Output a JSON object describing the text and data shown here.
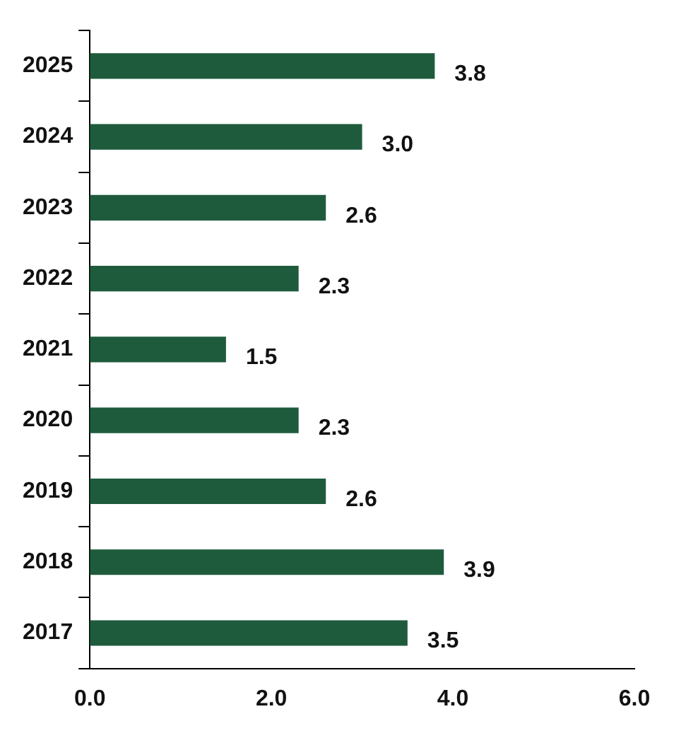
{
  "chart_data": {
    "type": "bar",
    "orientation": "horizontal",
    "categories": [
      "2025",
      "2024",
      "2023",
      "2022",
      "2021",
      "2020",
      "2019",
      "2018",
      "2017"
    ],
    "values": [
      3.8,
      3.0,
      2.6,
      2.3,
      1.5,
      2.3,
      2.6,
      3.9,
      3.5
    ],
    "value_labels": [
      "3.8",
      "3.0",
      "2.6",
      "2.3",
      "1.5",
      "2.3",
      "2.6",
      "3.9",
      "3.5"
    ],
    "color": "#1e5b3c",
    "xlim": [
      0,
      6
    ],
    "xticks": [
      {
        "value": 0,
        "label": "0.0"
      },
      {
        "value": 2,
        "label": "2.0"
      },
      {
        "value": 4,
        "label": "4.0"
      },
      {
        "value": 6,
        "label": "6.0"
      }
    ],
    "grid": false,
    "legend": false
  }
}
